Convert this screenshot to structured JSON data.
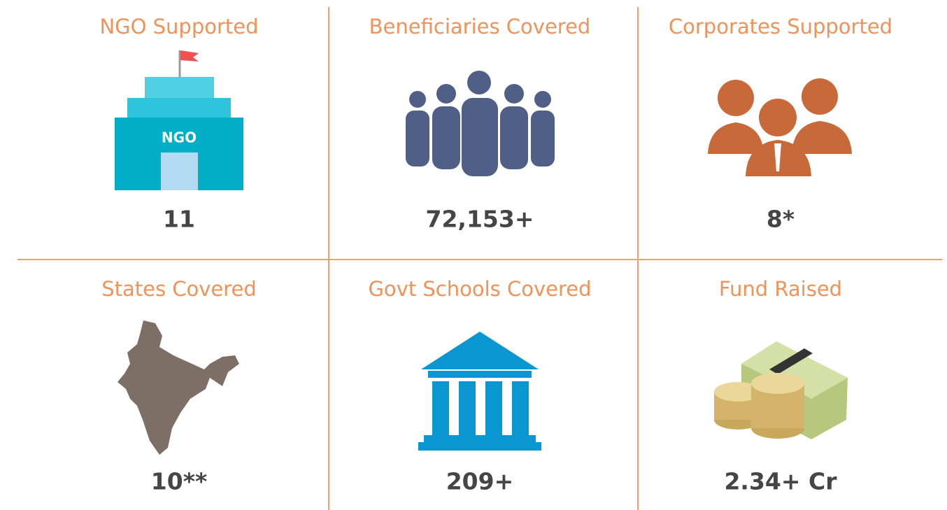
{
  "cells": [
    {
      "title": "NGO Supported",
      "value": "11",
      "icon_text": "NGO"
    },
    {
      "title": "Beneficiaries Covered",
      "value": "72,153+"
    },
    {
      "title": "Corporates Supported",
      "value": "8*"
    },
    {
      "title": "States Covered",
      "value": "10**"
    },
    {
      "title": "Govt Schools Covered",
      "value": "209+"
    },
    {
      "title": "Fund Raised",
      "value": "2.34+ Cr"
    }
  ]
}
